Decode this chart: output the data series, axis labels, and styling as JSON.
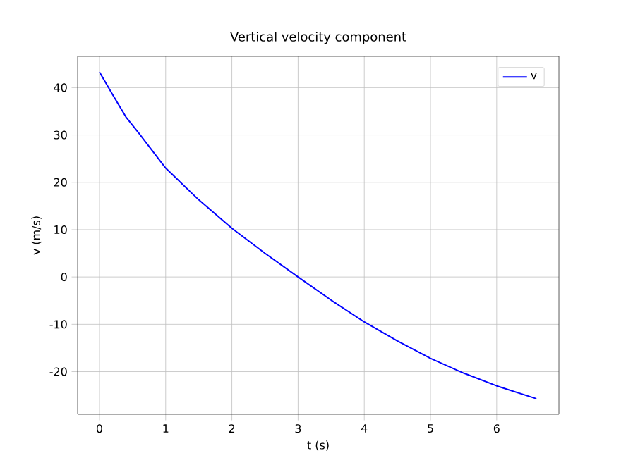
{
  "chart_data": {
    "type": "line",
    "title": "Vertical velocity component",
    "xlabel": "t (s)",
    "ylabel": "v (m/s)",
    "x": [
      0,
      0.2,
      0.4,
      0.6,
      1,
      1.5,
      2,
      2.5,
      3,
      3.5,
      4,
      4.5,
      5,
      5.5,
      6,
      6.6
    ],
    "series": [
      {
        "name": "v",
        "color": "#0000ff",
        "values": [
          43.3,
          38.5,
          33.8,
          30.3,
          23,
          16.3,
          10.3,
          5,
          0,
          -4.9,
          -9.5,
          -13.5,
          -17.2,
          -20.3,
          -23,
          -25.7
        ]
      }
    ],
    "xlim": [
      -0.33,
      6.94
    ],
    "ylim": [
      -29,
      46.6
    ],
    "xticks": [
      0,
      1,
      2,
      3,
      4,
      5,
      6
    ],
    "yticks": [
      -20,
      -10,
      0,
      10,
      20,
      30,
      40
    ],
    "grid": true,
    "legend": "top right",
    "marker": "none",
    "line_style": "solid"
  }
}
